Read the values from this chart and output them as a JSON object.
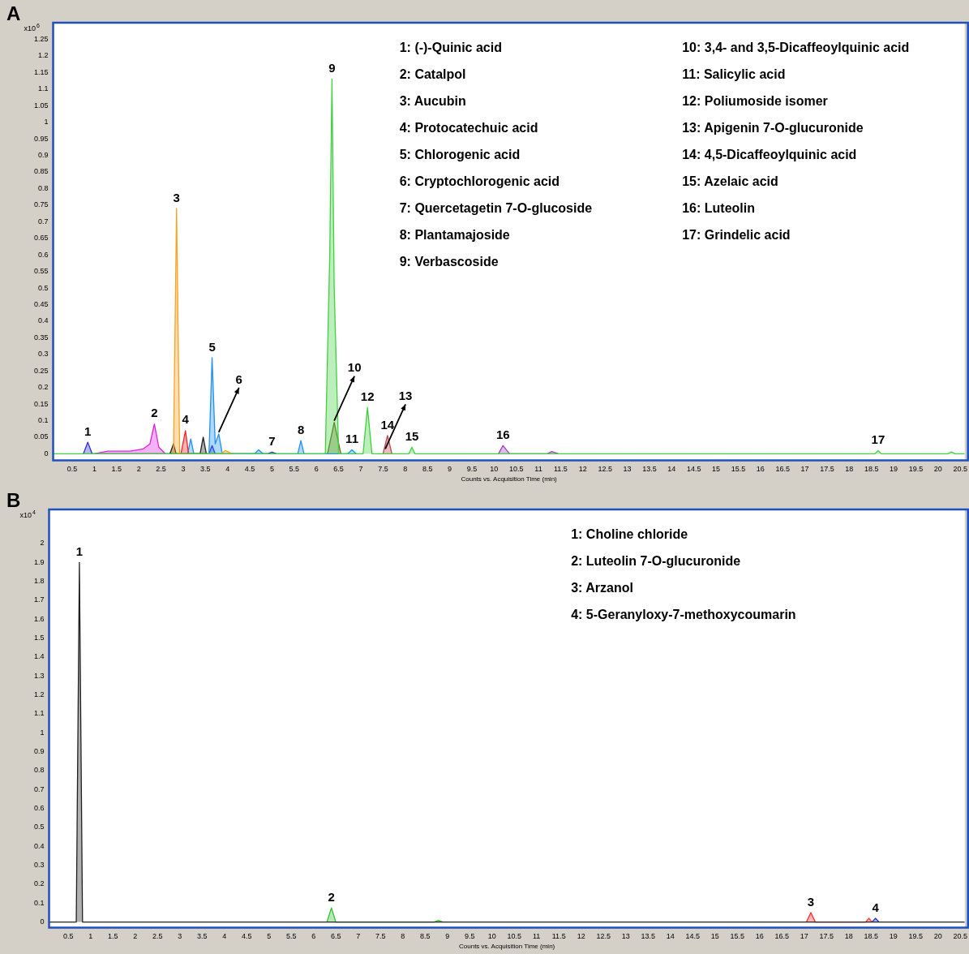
{
  "chart_data": [
    {
      "type": "area",
      "title": "A",
      "xlabel": "Counts vs. Acquisition Time (min)",
      "ylabel": "x10$^{6}$",
      "xlim": [
        0.07,
        20.6
      ],
      "ylim": [
        -0.02,
        1.3
      ],
      "xticks": [
        0.5,
        1,
        1.5,
        2,
        2.5,
        3,
        3.5,
        4,
        4.5,
        5,
        5.5,
        6,
        6.5,
        7,
        7.5,
        8,
        8.5,
        9,
        9.5,
        10,
        10.5,
        11,
        11.5,
        12,
        12.5,
        13,
        13.5,
        14,
        14.5,
        15,
        15.5,
        16,
        16.5,
        17,
        17.5,
        18,
        18.5,
        19,
        19.5,
        20,
        20.5
      ],
      "yticks": [
        0,
        0.05,
        0.1,
        0.15,
        0.2,
        0.25,
        0.3,
        0.35,
        0.4,
        0.45,
        0.5,
        0.55,
        0.6,
        0.65,
        0.7,
        0.75,
        0.8,
        0.85,
        0.9,
        0.95,
        1,
        1.05,
        1.1,
        1.15,
        1.2,
        1.25
      ],
      "series": [
        {
          "color": "#40d040",
          "x": [
            0.07,
            6.2,
            6.3,
            6.35,
            6.4,
            6.5,
            7.05,
            7.15,
            7.25,
            8.08,
            8.15,
            8.22,
            18.58,
            18.65,
            18.72,
            20.22,
            20.3,
            20.38,
            20.6
          ],
          "values": [
            0,
            0,
            0.6,
            1.13,
            0.5,
            0,
            0,
            0.14,
            0,
            0,
            0.02,
            0,
            0,
            0.01,
            0,
            0,
            0.006,
            0,
            0
          ]
        },
        {
          "color": "#e020e0",
          "x": [
            1.0,
            1.3,
            1.8,
            2.1,
            2.25,
            2.35,
            2.45,
            2.6
          ],
          "values": [
            0,
            0.008,
            0.008,
            0.015,
            0.03,
            0.09,
            0.02,
            0
          ]
        },
        {
          "color": "#ffa020",
          "x": [
            2.78,
            2.85,
            2.92,
            3.85,
            3.95,
            4.1
          ],
          "values": [
            0,
            0.74,
            0,
            0,
            0.01,
            0
          ]
        },
        {
          "color": "#ff2020",
          "x": [
            2.95,
            3.05,
            3.12
          ],
          "values": [
            0,
            0.07,
            0
          ]
        },
        {
          "color": "#202020",
          "x": [
            2.7,
            2.78,
            2.84,
            3.38,
            3.45,
            3.52
          ],
          "values": [
            0,
            0.03,
            0,
            0,
            0.05,
            0
          ]
        },
        {
          "color": "#2090f0",
          "x": [
            3.1,
            3.17,
            3.24,
            3.58,
            3.65,
            3.72,
            3.8,
            3.88,
            4.6,
            4.7,
            4.8,
            5.58,
            5.65,
            5.72,
            6.7,
            6.8,
            6.9
          ],
          "values": [
            0,
            0.045,
            0,
            0,
            0.29,
            0.03,
            0.06,
            0,
            0,
            0.012,
            0,
            0,
            0.04,
            0,
            0,
            0.012,
            0
          ]
        },
        {
          "color": "#2b2bd0",
          "x": [
            0.75,
            0.85,
            0.95,
            3.58,
            3.65,
            3.72,
            4.9,
            5.0,
            5.1
          ],
          "values": [
            0,
            0.035,
            0,
            0,
            0.025,
            0,
            0,
            0.005,
            0
          ]
        },
        {
          "color": "#6b6b20",
          "x": [
            6.25,
            6.4,
            6.55
          ],
          "values": [
            0,
            0.095,
            0
          ]
        },
        {
          "color": "#c04050",
          "x": [
            7.5,
            7.6,
            7.7
          ],
          "values": [
            0,
            0.055,
            0
          ]
        },
        {
          "color": "#a040c0",
          "x": [
            10.1,
            10.2,
            10.35,
            11.2,
            11.3,
            11.45
          ],
          "values": [
            0,
            0.025,
            0,
            0,
            0.007,
            0
          ]
        }
      ],
      "annotations": [
        "1: (-)-Quinic acid",
        "2: Catalpol",
        "3: Aucubin",
        "4: Protocatechuic acid",
        "5: Chlorogenic acid",
        "6: Cryptochlorogenic acid",
        "7: Quercetagetin 7-O-glucoside",
        "8: Plantamajoside",
        "9: Verbascoside",
        "10: 3,4- and 3,5-Dicaffeoylquinic acid",
        "11: Salicylic acid",
        "12: Poliumoside isomer",
        "13: Apigenin 7-O-glucuronide",
        "14: 4,5-Dicaffeoylquinic acid",
        "15: Azelaic acid",
        "16: Luteolin",
        "17: Grindelic acid",
        {
          "text": "1",
          "x": 0.85,
          "y": 0.035
        },
        {
          "text": "2",
          "x": 2.35,
          "y": 0.09
        },
        {
          "text": "3",
          "x": 2.85,
          "y": 0.74
        },
        {
          "text": "4",
          "x": 3.05,
          "y": 0.07
        },
        {
          "text": "5",
          "x": 3.65,
          "y": 0.29
        },
        {
          "text": "6",
          "x": 3.8,
          "y": 0.06
        },
        {
          "text": "7",
          "x": 5.0,
          "y": 0.005
        },
        {
          "text": "8",
          "x": 5.65,
          "y": 0.04
        },
        {
          "text": "9",
          "x": 6.35,
          "y": 1.13
        },
        {
          "text": "10",
          "x": 6.4,
          "y": 0.095
        },
        {
          "text": "11",
          "x": 6.8,
          "y": 0.012
        },
        {
          "text": "12",
          "x": 7.15,
          "y": 0.14
        },
        {
          "text": "13",
          "x": 7.55,
          "y": 0.01
        },
        {
          "text": "14",
          "x": 7.6,
          "y": 0.055
        },
        {
          "text": "15",
          "x": 8.15,
          "y": 0.02
        },
        {
          "text": "16",
          "x": 10.2,
          "y": 0.025
        },
        {
          "text": "17",
          "x": 18.65,
          "y": 0.01
        }
      ]
    },
    {
      "type": "area",
      "title": "B",
      "xlabel": "Counts vs. Acquisition Time (min)",
      "ylabel": "x10$^{4}$",
      "xlim": [
        0.07,
        20.6
      ],
      "ylim": [
        -0.03,
        2.18
      ],
      "xticks": [
        0.5,
        1,
        1.5,
        2,
        2.5,
        3,
        3.5,
        4,
        4.5,
        5,
        5.5,
        6,
        6.5,
        7,
        7.5,
        8,
        8.5,
        9,
        9.5,
        10,
        10.5,
        11,
        11.5,
        12,
        12.5,
        13,
        13.5,
        14,
        14.5,
        15,
        15.5,
        16,
        16.5,
        17,
        17.5,
        18,
        18.5,
        19,
        19.5,
        20,
        20.5
      ],
      "yticks": [
        0,
        0.1,
        0.2,
        0.3,
        0.4,
        0.5,
        0.6,
        0.7,
        0.8,
        0.9,
        1,
        1.1,
        1.2,
        1.3,
        1.4,
        1.5,
        1.6,
        1.7,
        1.8,
        1.9,
        2
      ],
      "series": [
        {
          "color": "#202020",
          "x": [
            0.07,
            0.68,
            0.75,
            0.82,
            20.6
          ],
          "values": [
            0,
            0,
            1.9,
            0,
            0
          ]
        },
        {
          "color": "#30c030",
          "x": [
            6.3,
            6.4,
            6.5,
            8.7,
            8.8,
            8.9
          ],
          "values": [
            0,
            0.075,
            0,
            0,
            0.008,
            0
          ]
        },
        {
          "color": "#ff3030",
          "x": [
            17.05,
            17.15,
            17.25,
            18.38,
            18.45,
            18.52
          ],
          "values": [
            0,
            0.05,
            0,
            0,
            0.02,
            0
          ]
        },
        {
          "color": "#2030d0",
          "x": [
            18.52,
            18.6,
            18.68
          ],
          "values": [
            0,
            0.02,
            0
          ]
        }
      ],
      "annotations": [
        "1: Choline chloride",
        "2: Luteolin 7-O-glucuronide",
        "3: Arzanol",
        "4: 5-Geranyloxy-7-methoxycoumarin",
        {
          "text": "1",
          "x": 0.75,
          "y": 1.9
        },
        {
          "text": "2",
          "x": 6.4,
          "y": 0.075
        },
        {
          "text": "3",
          "x": 17.15,
          "y": 0.05
        },
        {
          "text": "4",
          "x": 18.6,
          "y": 0.02
        }
      ]
    }
  ]
}
